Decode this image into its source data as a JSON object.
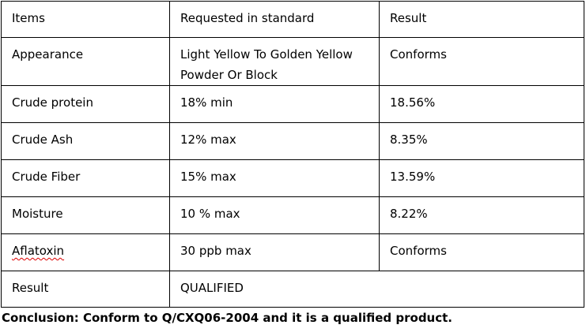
{
  "table": {
    "header": [
      "Items",
      "Requested in standard",
      "Result"
    ],
    "rows": [
      [
        "Appearance",
        "Light Yellow To Golden Yellow Powder Or Block",
        "Conforms"
      ],
      [
        "Crude protein",
        "18% min",
        "18.56%"
      ],
      [
        "Crude Ash",
        "12% max",
        "8.35%"
      ],
      [
        "Crude Fiber",
        "15% max",
        "13.59%"
      ],
      [
        "Moisture",
        "10 % max",
        "8.22%"
      ],
      [
        "Aflatoxin",
        "30 ppb max",
        "Conforms"
      ]
    ],
    "final_row": [
      "Result",
      "QUALIFIED"
    ]
  },
  "conclusion": "Conclusion: Conform to Q/CXQ06-2004 and it is a qualified product."
}
